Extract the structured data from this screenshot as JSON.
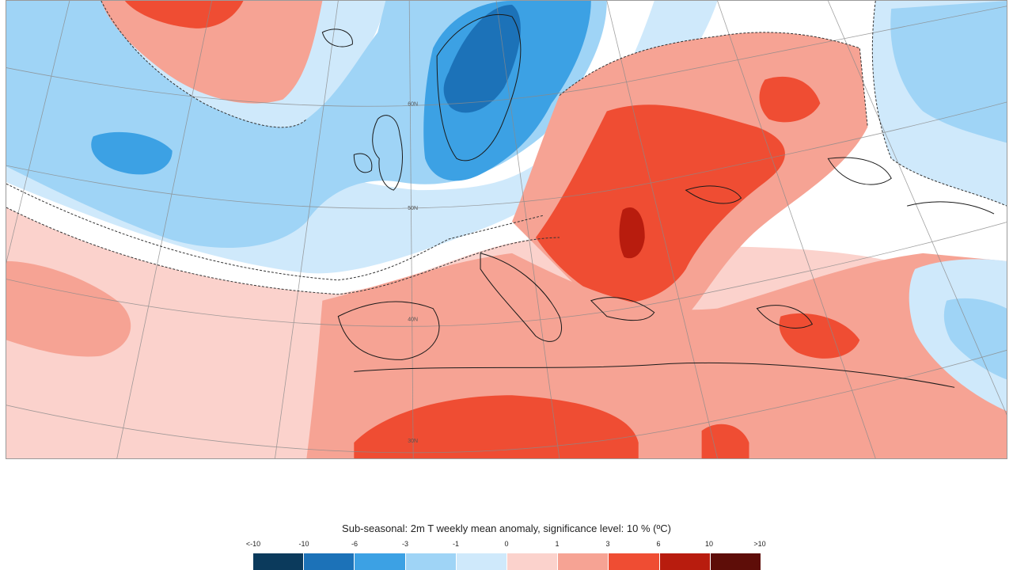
{
  "legend": {
    "title": "Sub-seasonal: 2m T weekly mean anomaly, significance level: 10 % (ºC)",
    "ticks": [
      "<-10",
      "-10",
      "-6",
      "-3",
      "-1",
      "0",
      "1",
      "3",
      "6",
      "10",
      ">10"
    ],
    "bins": [
      {
        "range": "<-10 to -10",
        "color": "#0b3a5c"
      },
      {
        "range": "-10 to -6",
        "color": "#1c72b8"
      },
      {
        "range": "-6 to -3",
        "color": "#3ca1e4"
      },
      {
        "range": "-3 to -1",
        "color": "#9fd4f6"
      },
      {
        "range": "-1 to 0",
        "color": "#cfe9fb"
      },
      {
        "range": "0 to 1",
        "color": "#fbd2cc"
      },
      {
        "range": "1 to 3",
        "color": "#f6a394"
      },
      {
        "range": "3 to 6",
        "color": "#ef4d33"
      },
      {
        "range": "6 to 10",
        "color": "#b81c0e"
      },
      {
        "range": "10 to >10",
        "color": "#5e0d08"
      }
    ]
  },
  "map": {
    "field": "2m temperature weekly mean anomaly",
    "unit": "ºC",
    "grid_labels": [
      "60N",
      "50N",
      "40N",
      "30N"
    ]
  }
}
